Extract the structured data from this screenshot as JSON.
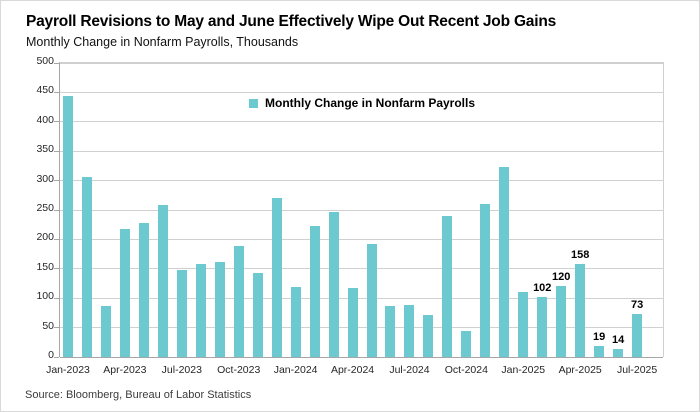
{
  "header": {
    "title": "Payroll Revisions to May and June Effectively Wipe Out Recent Job Gains",
    "subtitle": "Monthly Change in Nonfarm Payrolls, Thousands"
  },
  "legend": {
    "label": "Monthly Change in Nonfarm Payrolls",
    "swatch_color": "#6CC9CF"
  },
  "footer": {
    "source": "Source: Bloomberg, Bureau of Labor Statistics"
  },
  "chart_data": {
    "type": "bar",
    "title": "Payroll Revisions to May and June Effectively Wipe Out Recent Job Gains",
    "subtitle": "Monthly Change in Nonfarm Payrolls, Thousands",
    "xlabel": "",
    "ylabel": "Monthly Change in Nonfarm Payrolls, Thousands",
    "ylim": [
      0,
      500
    ],
    "yticks": [
      0,
      50,
      100,
      150,
      200,
      250,
      300,
      350,
      400,
      450,
      500
    ],
    "grid": "horizontal",
    "legend_position": "top-center-inside",
    "bar_color": "#6CC9CF",
    "categories": [
      "Jan-2023",
      "Feb-2023",
      "Mar-2023",
      "Apr-2023",
      "May-2023",
      "Jun-2023",
      "Jul-2023",
      "Aug-2023",
      "Sep-2023",
      "Oct-2023",
      "Nov-2023",
      "Dec-2023",
      "Jan-2024",
      "Feb-2024",
      "Mar-2024",
      "Apr-2024",
      "May-2024",
      "Jun-2024",
      "Jul-2024",
      "Aug-2024",
      "Sep-2024",
      "Oct-2024",
      "Nov-2024",
      "Dec-2024",
      "Jan-2025",
      "Feb-2025",
      "Mar-2025",
      "Apr-2025",
      "May-2025",
      "Jun-2025",
      "Jul-2025"
    ],
    "values": [
      444,
      306,
      87,
      217,
      228,
      258,
      148,
      159,
      161,
      188,
      143,
      270,
      119,
      222,
      246,
      118,
      193,
      87,
      88,
      71,
      240,
      44,
      261,
      323,
      111,
      102,
      120,
      158,
      19,
      14,
      73
    ],
    "xtick_labels": [
      "Jan-2023",
      "Apr-2023",
      "Jul-2023",
      "Oct-2023",
      "Jan-2024",
      "Apr-2024",
      "Jul-2024",
      "Oct-2024",
      "Jan-2025",
      "Apr-2025",
      "Jul-2025"
    ],
    "xtick_every": 3,
    "value_labels_on": [
      "Feb-2025",
      "Mar-2025",
      "Apr-2025",
      "May-2025",
      "Jun-2025",
      "Jul-2025"
    ]
  }
}
